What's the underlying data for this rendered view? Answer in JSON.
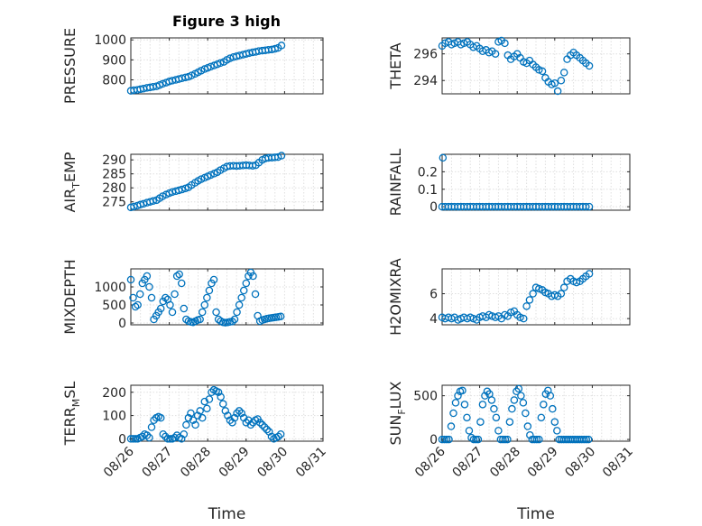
{
  "figure_title": "Figure 3 high",
  "colors": {
    "marker": "#0072bd",
    "axis": "#262626",
    "grid": "#dfdfdf"
  },
  "chart_data": [
    {
      "id": "pressure",
      "type": "scatter",
      "title": "Figure 3 high",
      "ylabel": "PRESSURE",
      "ylabel_sub": "",
      "ylabel_tail": "",
      "xlabel": "",
      "ylim": [
        730,
        1010
      ],
      "yticks": [
        800,
        900,
        1000
      ],
      "ytick_labels": [
        "800",
        "900",
        "1000"
      ],
      "xlim": [
        "08/26",
        "08/31"
      ],
      "xticks": [
        0,
        1,
        2,
        3,
        4,
        5
      ],
      "xtick_labels": [],
      "grid": true,
      "x": [
        0.0,
        0.08,
        0.17,
        0.25,
        0.33,
        0.42,
        0.5,
        0.58,
        0.67,
        0.75,
        0.83,
        0.92,
        1.0,
        1.08,
        1.17,
        1.25,
        1.33,
        1.42,
        1.5,
        1.58,
        1.67,
        1.75,
        1.83,
        1.92,
        2.0,
        2.08,
        2.17,
        2.25,
        2.33,
        2.42,
        2.5,
        2.58,
        2.67,
        2.75,
        2.83,
        2.92,
        3.0,
        3.08,
        3.17,
        3.25,
        3.33,
        3.42,
        3.5,
        3.58,
        3.67,
        3.75,
        3.83,
        3.92
      ],
      "y": [
        745,
        748,
        750,
        753,
        756,
        760,
        762,
        765,
        768,
        774,
        780,
        786,
        792,
        796,
        800,
        804,
        808,
        812,
        815,
        822,
        830,
        838,
        846,
        854,
        860,
        866,
        872,
        878,
        884,
        890,
        900,
        908,
        914,
        918,
        922,
        926,
        930,
        934,
        938,
        940,
        944,
        946,
        948,
        950,
        952,
        955,
        960,
        972
      ]
    },
    {
      "id": "theta",
      "type": "scatter",
      "ylabel": "THETA",
      "ylabel_sub": "",
      "ylabel_tail": "",
      "xlabel": "",
      "ylim": [
        293.0,
        297.2
      ],
      "yticks": [
        294,
        296
      ],
      "ytick_labels": [
        "294",
        "296"
      ],
      "xlim": [
        "08/26",
        "08/31"
      ],
      "xticks": [
        0,
        1,
        2,
        3,
        4,
        5
      ],
      "xtick_labels": [],
      "grid": true,
      "x": [
        0.0,
        0.08,
        0.17,
        0.25,
        0.33,
        0.42,
        0.5,
        0.58,
        0.67,
        0.75,
        0.83,
        0.92,
        1.0,
        1.08,
        1.17,
        1.25,
        1.33,
        1.42,
        1.5,
        1.58,
        1.67,
        1.75,
        1.83,
        1.92,
        2.0,
        2.08,
        2.17,
        2.25,
        2.33,
        2.42,
        2.5,
        2.58,
        2.67,
        2.75,
        2.83,
        2.92,
        3.0,
        3.08,
        3.17,
        3.25,
        3.33,
        3.42,
        3.5,
        3.58,
        3.67,
        3.75,
        3.83,
        3.92
      ],
      "y": [
        296.6,
        296.8,
        296.9,
        296.7,
        296.8,
        296.9,
        296.7,
        296.8,
        296.9,
        296.7,
        296.5,
        296.6,
        296.4,
        296.2,
        296.3,
        296.1,
        296.2,
        296.0,
        296.9,
        297.0,
        296.8,
        295.9,
        295.6,
        295.8,
        296.0,
        295.7,
        295.4,
        295.3,
        295.5,
        295.2,
        295.0,
        294.8,
        294.7,
        294.2,
        293.9,
        293.7,
        293.8,
        293.2,
        294.0,
        294.6,
        295.6,
        295.9,
        296.1,
        295.9,
        295.7,
        295.5,
        295.3,
        295.1
      ]
    },
    {
      "id": "air-temp",
      "type": "scatter",
      "ylabel": "AIR",
      "ylabel_sub": "T",
      "ylabel_tail": "EMP",
      "xlabel": "",
      "ylim": [
        272,
        292
      ],
      "yticks": [
        275,
        280,
        285,
        290
      ],
      "ytick_labels": [
        "275",
        "280",
        "285",
        "290"
      ],
      "xlim": [
        "08/26",
        "08/31"
      ],
      "xticks": [
        0,
        1,
        2,
        3,
        4,
        5
      ],
      "xtick_labels": [],
      "grid": true,
      "x": [
        0.0,
        0.08,
        0.17,
        0.25,
        0.33,
        0.42,
        0.5,
        0.58,
        0.67,
        0.75,
        0.83,
        0.92,
        1.0,
        1.08,
        1.17,
        1.25,
        1.33,
        1.42,
        1.5,
        1.58,
        1.67,
        1.75,
        1.83,
        1.92,
        2.0,
        2.08,
        2.17,
        2.25,
        2.33,
        2.42,
        2.5,
        2.58,
        2.67,
        2.75,
        2.83,
        2.92,
        3.0,
        3.08,
        3.17,
        3.25,
        3.33,
        3.42,
        3.5,
        3.58,
        3.67,
        3.75,
        3.83,
        3.92
      ],
      "y": [
        273.0,
        273.3,
        273.6,
        274.0,
        274.3,
        274.7,
        275.0,
        275.3,
        275.6,
        276.3,
        277.0,
        277.6,
        278.1,
        278.5,
        278.8,
        279.1,
        279.4,
        279.8,
        280.2,
        281.0,
        281.8,
        282.5,
        283.1,
        283.6,
        284.1,
        284.6,
        285.1,
        285.6,
        286.3,
        287.0,
        287.6,
        287.8,
        287.9,
        287.8,
        287.9,
        288.0,
        288.1,
        288.0,
        287.9,
        288.1,
        289.0,
        290.0,
        290.5,
        290.7,
        290.8,
        290.9,
        291.0,
        291.5
      ]
    },
    {
      "id": "rainfall",
      "type": "scatter",
      "ylabel": "RAINFALL",
      "ylabel_sub": "",
      "ylabel_tail": "",
      "xlabel": "",
      "ylim": [
        -0.02,
        0.3
      ],
      "yticks": [
        0,
        0.1,
        0.2
      ],
      "ytick_labels": [
        "0",
        "0.1",
        "0.2"
      ],
      "xlim": [
        "08/26",
        "08/31"
      ],
      "xticks": [
        0,
        1,
        2,
        3,
        4,
        5
      ],
      "xtick_labels": [],
      "grid": true,
      "x": [
        0.0,
        0.08,
        0.17,
        0.25,
        0.33,
        0.42,
        0.5,
        0.58,
        0.67,
        0.75,
        0.83,
        0.92,
        1.0,
        1.08,
        1.17,
        1.25,
        1.33,
        1.42,
        1.5,
        1.58,
        1.67,
        1.75,
        1.83,
        1.92,
        2.0,
        2.08,
        2.17,
        2.25,
        2.33,
        2.42,
        2.5,
        2.58,
        2.67,
        2.75,
        2.83,
        2.92,
        3.0,
        3.08,
        3.17,
        3.25,
        3.33,
        3.42,
        3.5,
        3.58,
        3.67,
        3.75,
        3.83,
        3.92,
        0.02
      ],
      "y": [
        0,
        0,
        0,
        0,
        0,
        0,
        0,
        0,
        0,
        0,
        0,
        0,
        0,
        0,
        0,
        0,
        0,
        0,
        0,
        0,
        0,
        0,
        0,
        0,
        0,
        0,
        0,
        0,
        0,
        0,
        0,
        0,
        0,
        0,
        0,
        0,
        0,
        0,
        0,
        0,
        0,
        0,
        0,
        0,
        0,
        0,
        0,
        0,
        0.28
      ]
    },
    {
      "id": "mixdepth",
      "type": "scatter",
      "ylabel": "MIXDEPTH",
      "ylabel_sub": "",
      "ylabel_tail": "",
      "xlabel": "",
      "ylim": [
        -50,
        1500
      ],
      "yticks": [
        0,
        500,
        1000
      ],
      "ytick_labels": [
        "0",
        "500",
        "1000"
      ],
      "xlim": [
        "08/26",
        "08/31"
      ],
      "xticks": [
        0,
        1,
        2,
        3,
        4,
        5
      ],
      "xtick_labels": [],
      "grid": true,
      "x": [
        0.0,
        0.06,
        0.12,
        0.18,
        0.24,
        0.3,
        0.36,
        0.42,
        0.48,
        0.54,
        0.6,
        0.66,
        0.72,
        0.78,
        0.84,
        0.9,
        0.96,
        1.02,
        1.08,
        1.14,
        1.2,
        1.26,
        1.32,
        1.38,
        1.44,
        1.5,
        1.56,
        1.62,
        1.68,
        1.74,
        1.8,
        1.86,
        1.92,
        1.98,
        2.04,
        2.1,
        2.16,
        2.22,
        2.28,
        2.34,
        2.4,
        2.46,
        2.52,
        2.58,
        2.64,
        2.7,
        2.76,
        2.82,
        2.88,
        2.94,
        3.0,
        3.06,
        3.12,
        3.18,
        3.24,
        3.3,
        3.36,
        3.42,
        3.48,
        3.54,
        3.6,
        3.66,
        3.72,
        3.78,
        3.84,
        3.9
      ],
      "y": [
        1200,
        700,
        450,
        500,
        800,
        1100,
        1200,
        1300,
        1000,
        700,
        100,
        200,
        300,
        400,
        600,
        700,
        650,
        500,
        300,
        800,
        1300,
        1350,
        1100,
        400,
        100,
        50,
        30,
        20,
        50,
        80,
        100,
        300,
        500,
        700,
        900,
        1100,
        1200,
        300,
        100,
        50,
        20,
        10,
        20,
        30,
        40,
        100,
        300,
        500,
        700,
        900,
        1100,
        1300,
        1400,
        1300,
        800,
        200,
        50,
        80,
        100,
        120,
        130,
        140,
        150,
        160,
        170,
        180
      ]
    },
    {
      "id": "h2omixra",
      "type": "scatter",
      "ylabel": "H2OMIXRA",
      "ylabel_sub": "",
      "ylabel_tail": "",
      "xlabel": "",
      "ylim": [
        3.5,
        8.0
      ],
      "yticks": [
        4,
        6
      ],
      "ytick_labels": [
        "4",
        "6"
      ],
      "xlim": [
        "08/26",
        "08/31"
      ],
      "xticks": [
        0,
        1,
        2,
        3,
        4,
        5
      ],
      "xtick_labels": [],
      "grid": true,
      "x": [
        0.0,
        0.08,
        0.17,
        0.25,
        0.33,
        0.42,
        0.5,
        0.58,
        0.67,
        0.75,
        0.83,
        0.92,
        1.0,
        1.08,
        1.17,
        1.25,
        1.33,
        1.42,
        1.5,
        1.58,
        1.67,
        1.75,
        1.83,
        1.92,
        2.0,
        2.08,
        2.17,
        2.25,
        2.33,
        2.42,
        2.5,
        2.58,
        2.67,
        2.75,
        2.83,
        2.92,
        3.0,
        3.08,
        3.17,
        3.25,
        3.33,
        3.42,
        3.5,
        3.58,
        3.67,
        3.75,
        3.83,
        3.92
      ],
      "y": [
        4.1,
        4.0,
        4.1,
        4.0,
        4.1,
        3.9,
        4.0,
        4.1,
        4.0,
        4.1,
        4.0,
        3.9,
        4.1,
        4.2,
        4.1,
        4.3,
        4.2,
        4.1,
        4.2,
        4.0,
        4.3,
        4.2,
        4.5,
        4.6,
        4.3,
        4.1,
        4.0,
        5.0,
        5.5,
        6.0,
        6.5,
        6.4,
        6.3,
        6.1,
        6.0,
        5.8,
        5.9,
        5.8,
        6.0,
        6.5,
        7.0,
        7.2,
        7.0,
        6.9,
        7.0,
        7.2,
        7.4,
        7.6
      ]
    },
    {
      "id": "terr-msl",
      "type": "scatter",
      "ylabel": "TERR",
      "ylabel_sub": "M",
      "ylabel_tail": "SL",
      "xlabel": "Time",
      "ylim": [
        -10,
        230
      ],
      "yticks": [
        0,
        100,
        200
      ],
      "ytick_labels": [
        "0",
        "100",
        "200"
      ],
      "xlim": [
        "08/26",
        "08/31"
      ],
      "xticks": [
        0,
        1,
        2,
        3,
        4,
        5
      ],
      "xtick_labels": [
        "08/26",
        "08/27",
        "08/28",
        "08/29",
        "08/30",
        "08/31"
      ],
      "grid": true,
      "x": [
        0.0,
        0.06,
        0.12,
        0.18,
        0.24,
        0.3,
        0.36,
        0.42,
        0.48,
        0.54,
        0.6,
        0.66,
        0.72,
        0.78,
        0.84,
        0.9,
        0.96,
        1.02,
        1.08,
        1.14,
        1.2,
        1.26,
        1.32,
        1.38,
        1.44,
        1.5,
        1.56,
        1.62,
        1.68,
        1.74,
        1.8,
        1.86,
        1.92,
        1.98,
        2.04,
        2.1,
        2.16,
        2.22,
        2.28,
        2.34,
        2.4,
        2.46,
        2.52,
        2.58,
        2.64,
        2.7,
        2.76,
        2.82,
        2.88,
        2.94,
        3.0,
        3.06,
        3.12,
        3.18,
        3.24,
        3.3,
        3.36,
        3.42,
        3.48,
        3.54,
        3.6,
        3.66,
        3.72,
        3.78,
        3.84,
        3.9
      ],
      "y": [
        0,
        0,
        0,
        0,
        5,
        10,
        20,
        15,
        5,
        50,
        80,
        90,
        95,
        90,
        20,
        10,
        0,
        0,
        0,
        5,
        15,
        5,
        0,
        20,
        60,
        90,
        110,
        80,
        60,
        100,
        120,
        90,
        160,
        130,
        170,
        200,
        210,
        205,
        200,
        180,
        150,
        120,
        100,
        80,
        70,
        90,
        110,
        120,
        110,
        90,
        70,
        80,
        60,
        70,
        80,
        85,
        70,
        60,
        50,
        40,
        30,
        10,
        0,
        5,
        10,
        20
      ]
    },
    {
      "id": "sun-flux",
      "type": "scatter",
      "ylabel": "SUN",
      "ylabel_sub": "F",
      "ylabel_tail": "LUX",
      "xlabel": "Time",
      "ylim": [
        -20,
        620
      ],
      "yticks": [
        0,
        500
      ],
      "ytick_labels": [
        "0",
        "500"
      ],
      "xlim": [
        "08/26",
        "08/31"
      ],
      "xticks": [
        0,
        1,
        2,
        3,
        4,
        5
      ],
      "xtick_labels": [
        "08/26",
        "08/27",
        "08/28",
        "08/29",
        "08/30",
        "08/31"
      ],
      "grid": true,
      "x": [
        0.0,
        0.06,
        0.12,
        0.18,
        0.24,
        0.3,
        0.36,
        0.42,
        0.48,
        0.54,
        0.6,
        0.66,
        0.72,
        0.78,
        0.84,
        0.9,
        0.96,
        1.02,
        1.08,
        1.14,
        1.2,
        1.26,
        1.32,
        1.38,
        1.44,
        1.5,
        1.56,
        1.62,
        1.68,
        1.74,
        1.8,
        1.86,
        1.92,
        1.98,
        2.04,
        2.1,
        2.16,
        2.22,
        2.28,
        2.34,
        2.4,
        2.46,
        2.52,
        2.58,
        2.64,
        2.7,
        2.76,
        2.82,
        2.88,
        2.94,
        3.0,
        3.06,
        3.12,
        3.18,
        3.24,
        3.3,
        3.36,
        3.42,
        3.48,
        3.54,
        3.6,
        3.66,
        3.72,
        3.78,
        3.84,
        3.9
      ],
      "y": [
        0,
        0,
        0,
        0,
        150,
        300,
        420,
        500,
        550,
        560,
        400,
        250,
        100,
        20,
        0,
        0,
        0,
        200,
        400,
        500,
        550,
        520,
        450,
        350,
        250,
        100,
        0,
        0,
        0,
        0,
        200,
        350,
        450,
        550,
        580,
        500,
        420,
        300,
        150,
        50,
        0,
        0,
        0,
        0,
        250,
        400,
        520,
        560,
        500,
        350,
        200,
        100,
        0,
        0,
        0,
        0,
        0,
        0,
        0,
        0,
        0,
        0,
        0,
        0,
        0,
        0
      ]
    }
  ]
}
